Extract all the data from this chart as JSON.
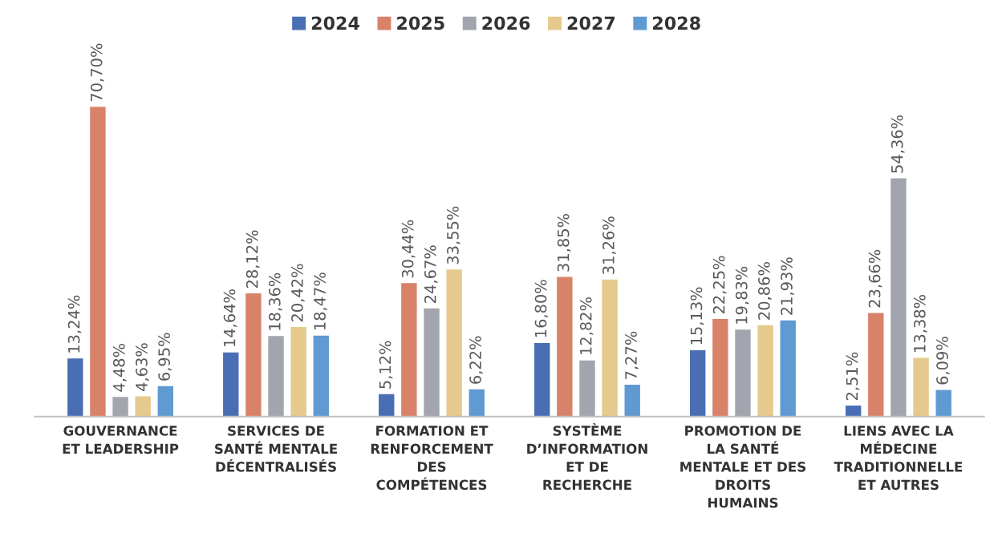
{
  "chart_data": {
    "type": "bar",
    "categories": [
      "GOUVERNANCE\nET LEADERSHIP",
      "SERVICES DE\nSANTÉ MENTALE\nDÉCENTRALISÉS",
      "FORMATION ET\nRENFORCEMENT\nDES\nCOMPÉTENCES",
      "SYSTÈME\nD’INFORMATION\nET DE\nRECHERCHE",
      "PROMOTION DE\nLA SANTÉ\nMENTALE ET DES\nDROITS\nHUMAINS",
      "LIENS AVEC LA\nMÉDECINE\nTRADITIONNELLE\nET AUTRES"
    ],
    "series": [
      {
        "name": "2024",
        "color": "#4a6eb4",
        "values": [
          13.24,
          14.64,
          5.12,
          16.8,
          15.13,
          2.51
        ],
        "value_labels": [
          "13,24%",
          "14,64%",
          "5,12%",
          "16,80%",
          "15,13%",
          "2,51%"
        ]
      },
      {
        "name": "2025",
        "color": "#d8826a",
        "values": [
          70.7,
          28.12,
          30.44,
          31.85,
          22.25,
          23.66
        ],
        "value_labels": [
          "70,70%",
          "28,12%",
          "30,44%",
          "31,85%",
          "22,25%",
          "23,66%"
        ]
      },
      {
        "name": "2026",
        "color": "#a2a5ad",
        "values": [
          4.48,
          18.36,
          24.67,
          12.82,
          19.83,
          54.36
        ],
        "value_labels": [
          "4,48%",
          "18,36%",
          "24,67%",
          "12,82%",
          "19,83%",
          "54,36%"
        ]
      },
      {
        "name": "2027",
        "color": "#e6c98c",
        "values": [
          4.63,
          20.42,
          33.55,
          31.26,
          20.86,
          13.38
        ],
        "value_labels": [
          "4,63%",
          "20,42%",
          "33,55%",
          "31,26%",
          "20,86%",
          "13,38%"
        ]
      },
      {
        "name": "2028",
        "color": "#5f9ad2",
        "values": [
          6.95,
          18.47,
          6.22,
          7.27,
          21.93,
          6.09
        ],
        "value_labels": [
          "6,95%",
          "18,47%",
          "6,22%",
          "7,27%",
          "21,93%",
          "6,09%"
        ]
      }
    ],
    "legend": "top",
    "grid": false
  }
}
